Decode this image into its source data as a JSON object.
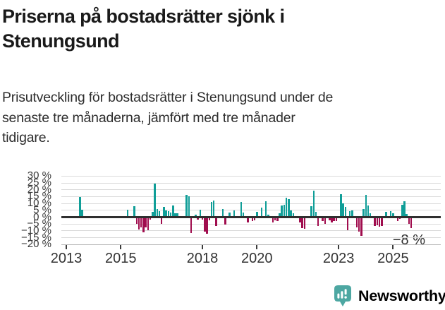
{
  "title": {
    "line1": "Priserna på bostadsrätter sjönk i",
    "line2": "Stenungsund"
  },
  "subtitle": {
    "line1": "Prisutveckling för bostadsrätter i Stenungsund under de",
    "line2": "senaste tre månaderna, jämfört med tre månader",
    "line3": "tidigare."
  },
  "footer": {
    "brand": "Newsworthy"
  },
  "colors": {
    "positive": "#109E98",
    "negative": "#A00D4E",
    "grid": "#DADADA",
    "zero_line": "#2F2F2F",
    "axis_text": "#3A3A3A",
    "brand_teal": "#45A49F",
    "title_text": "#1A1A1A"
  },
  "chart_data": {
    "type": "bar",
    "title": "Priserna på bostadsrätter sjönk i Stenungsund",
    "subtitle": "Prisutveckling för bostadsrätter i Stenungsund under de senaste tre månaderna, jämfört med tre månader tidigare.",
    "unit": "%",
    "start_month": "2013-01",
    "end_month": "2025-09",
    "ylim": [
      -20,
      30
    ],
    "grid": true,
    "legend": false,
    "y_ticks": [
      {
        "value": 30,
        "label": "30 %"
      },
      {
        "value": 25,
        "label": "25 %"
      },
      {
        "value": 20,
        "label": "20 %"
      },
      {
        "value": 15,
        "label": "15 %"
      },
      {
        "value": 10,
        "label": "10 %"
      },
      {
        "value": 5,
        "label": "5 %"
      },
      {
        "value": 0,
        "label": "0 %"
      },
      {
        "value": -5,
        "label": "−5 %"
      },
      {
        "value": -10,
        "label": "−10 %"
      },
      {
        "value": -15,
        "label": "−15 %"
      },
      {
        "value": -20,
        "label": "−20 %"
      }
    ],
    "x_ticks": [
      {
        "month_index": 0,
        "label": "2013"
      },
      {
        "month_index": 24,
        "label": "2015"
      },
      {
        "month_index": 60,
        "label": "2018"
      },
      {
        "month_index": 84,
        "label": "2020"
      },
      {
        "month_index": 120,
        "label": "2023"
      },
      {
        "month_index": 144,
        "label": "2025"
      }
    ],
    "annotation": {
      "text": "−8 %",
      "value": -8
    },
    "values": [
      0,
      0,
      0,
      0,
      0,
      0,
      14.7,
      5.3,
      0,
      0,
      0,
      0,
      0,
      0,
      0,
      0,
      0,
      0,
      0,
      0,
      0,
      0,
      -0.9,
      0,
      0,
      0,
      0,
      5.3,
      0,
      0,
      7.9,
      -5.0,
      -9.0,
      -7.6,
      -11.0,
      -7.6,
      -9.5,
      -1.6,
      4.0,
      24.5,
      5.7,
      4.3,
      -4.8,
      7.6,
      5.0,
      4.3,
      3.5,
      8.3,
      3.1,
      3.1,
      0,
      0,
      0,
      16.4,
      15.0,
      -11.5,
      0,
      2.0,
      -2.0,
      5.2,
      -1.7,
      -10.3,
      -12.1,
      -2.4,
      10.9,
      12.1,
      -6.4,
      0,
      0,
      5.7,
      -5.5,
      0,
      3.4,
      0,
      4.8,
      0,
      0,
      10.9,
      3.3,
      0,
      -3.8,
      0,
      -2.9,
      -2.4,
      4.0,
      0,
      7.0,
      0,
      11.7,
      2.0,
      0,
      -3.8,
      -2.1,
      -2.9,
      3.1,
      8.3,
      8.8,
      14.3,
      13.4,
      4.8,
      3.1,
      0,
      0,
      -3.8,
      -7.8,
      -8.4,
      0,
      0,
      7.8,
      19.1,
      4.0,
      -6.4,
      0,
      -2.9,
      -4.7,
      0,
      -2.1,
      -3.8,
      -2.9,
      -2.6,
      0,
      16.9,
      10.0,
      7.4,
      -9.5,
      4.3,
      4.8,
      0,
      -7.2,
      -10.7,
      -13.8,
      5.7,
      16.4,
      8.3,
      3.1,
      0,
      -6.4,
      -6.0,
      -6.7,
      -6.4,
      0,
      4.0,
      0,
      4.3,
      3.1,
      0,
      -2.9,
      -1.5,
      9.1,
      11.7,
      2.6,
      -4.7,
      -8.0
    ]
  }
}
